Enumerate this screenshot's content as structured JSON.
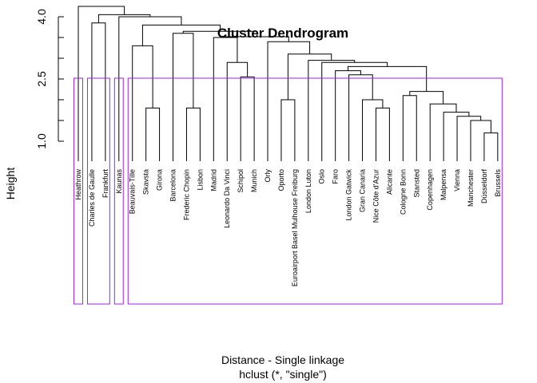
{
  "chart_data": {
    "type": "dendrogram",
    "title": "Cluster Dendrogram",
    "xlabel": "Distance - Single linkage",
    "sub": "hclust (*, \"single\")",
    "ylabel": "Height",
    "yticks": [
      1.0,
      2.5,
      4.0
    ],
    "yticks_minor": [
      1.5,
      2.0,
      3.0,
      3.5
    ],
    "ylim": [
      0.9,
      4.3
    ],
    "box_color": "#A020F0",
    "labels": [
      "Heathrow",
      "Charles de Gaulle",
      "Frankfurt",
      "Kaunas",
      "Beauvais-Tille",
      "Skavsta",
      "Girona",
      "Barcelona",
      "Frederic Chopin",
      "Lisbon",
      "Madrid",
      "Leonardo Da Vinci",
      "Schipol",
      "Munich",
      "Orly",
      "Oporto",
      "Euroairport Basel Mulhouse Freiburg",
      "London Luton",
      "Oslo",
      "Faro",
      "London Gatwick",
      "Gran Canaria",
      "Nice Côte d'Azur",
      "Alicante",
      "Cologne Bonn",
      "Stansted",
      "Copenhagen",
      "Malpensa",
      "Vienna",
      "Manchester",
      "Düsseldorf",
      "Brussels"
    ],
    "merges": [
      [
        -31,
        -32,
        1.2
      ],
      [
        -30,
        1,
        1.5
      ],
      [
        -29,
        2,
        1.6
      ],
      [
        -28,
        3,
        1.7
      ],
      [
        -6,
        -7,
        1.8
      ],
      [
        -23,
        -24,
        1.8
      ],
      [
        -9,
        -10,
        1.8
      ],
      [
        -27,
        4,
        1.9
      ],
      [
        -22,
        6,
        2.0
      ],
      [
        -16,
        -17,
        2.0
      ],
      [
        -25,
        -26,
        2.1
      ],
      [
        11,
        8,
        2.2
      ],
      [
        -14,
        -13,
        2.55
      ],
      [
        -2,
        -3,
        3.85
      ],
      [
        -21,
        9,
        2.6
      ],
      [
        -20,
        15,
        2.7
      ],
      [
        16,
        12,
        2.8
      ],
      [
        -12,
        13,
        2.9
      ],
      [
        -19,
        17,
        2.9
      ],
      [
        -18,
        19,
        2.95
      ],
      [
        10,
        20,
        3.1
      ],
      [
        -5,
        5,
        3.3
      ],
      [
        -15,
        21,
        3.4
      ],
      [
        -11,
        18,
        3.5
      ],
      [
        24,
        23,
        3.52
      ],
      [
        -8,
        7,
        3.6
      ],
      [
        26,
        25,
        3.65
      ],
      [
        22,
        27,
        3.8
      ],
      [
        -4,
        28,
        4.0
      ],
      [
        14,
        29,
        4.05
      ],
      [
        -1,
        30,
        4.25
      ]
    ],
    "clusters": [
      1,
      2,
      1,
      28
    ]
  }
}
